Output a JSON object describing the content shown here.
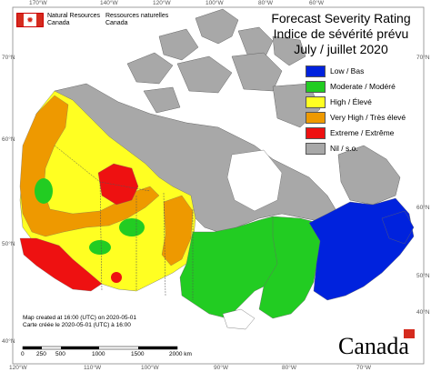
{
  "header": {
    "dept_en_line1": "Natural Resources",
    "dept_en_line2": "Canada",
    "dept_fr_line1": "Ressources naturelles",
    "dept_fr_line2": "Canada",
    "flag_symbol": "✹"
  },
  "title": {
    "line1": "Forecast Severity Rating",
    "line2": "Indice de sévérité prévu",
    "line3": "July / juillet 2020"
  },
  "legend": [
    {
      "label": "Low / Bas",
      "color": "#0022dd"
    },
    {
      "label": "Moderate / Modéré",
      "color": "#22cc22"
    },
    {
      "label": "High / Élevé",
      "color": "#ffff22"
    },
    {
      "label": "Very High / Très élevé",
      "color": "#ee9900"
    },
    {
      "label": "Extreme / Extrême",
      "color": "#ee1111"
    },
    {
      "label": "Nil / s.o.",
      "color": "#a8a8a8"
    }
  ],
  "note": {
    "line1": "Map created at 16:00 (UTC) on 2020-05-01",
    "line2": "Carte créée le 2020-05-01 (UTC) à 16:00"
  },
  "scale": {
    "labels": [
      "0",
      "250",
      "500",
      "1000",
      "1500",
      "2000 km"
    ]
  },
  "longitudes_top": [
    "170°W",
    "140°W",
    "120°W",
    "100°W",
    "80°W",
    "60°W"
  ],
  "longitudes_bottom": [
    "120°W",
    "110°W",
    "100°W",
    "90°W",
    "80°W",
    "70°W"
  ],
  "latitudes_left": [
    "70°N",
    "60°N",
    "50°N",
    "40°N"
  ],
  "latitudes_right": [
    "70°N",
    "60°N",
    "50°N",
    "40°N"
  ],
  "wordmark": "Canada",
  "colors": {
    "water": "#ffffff",
    "nil": "#a8a8a8",
    "border": "#555555"
  }
}
